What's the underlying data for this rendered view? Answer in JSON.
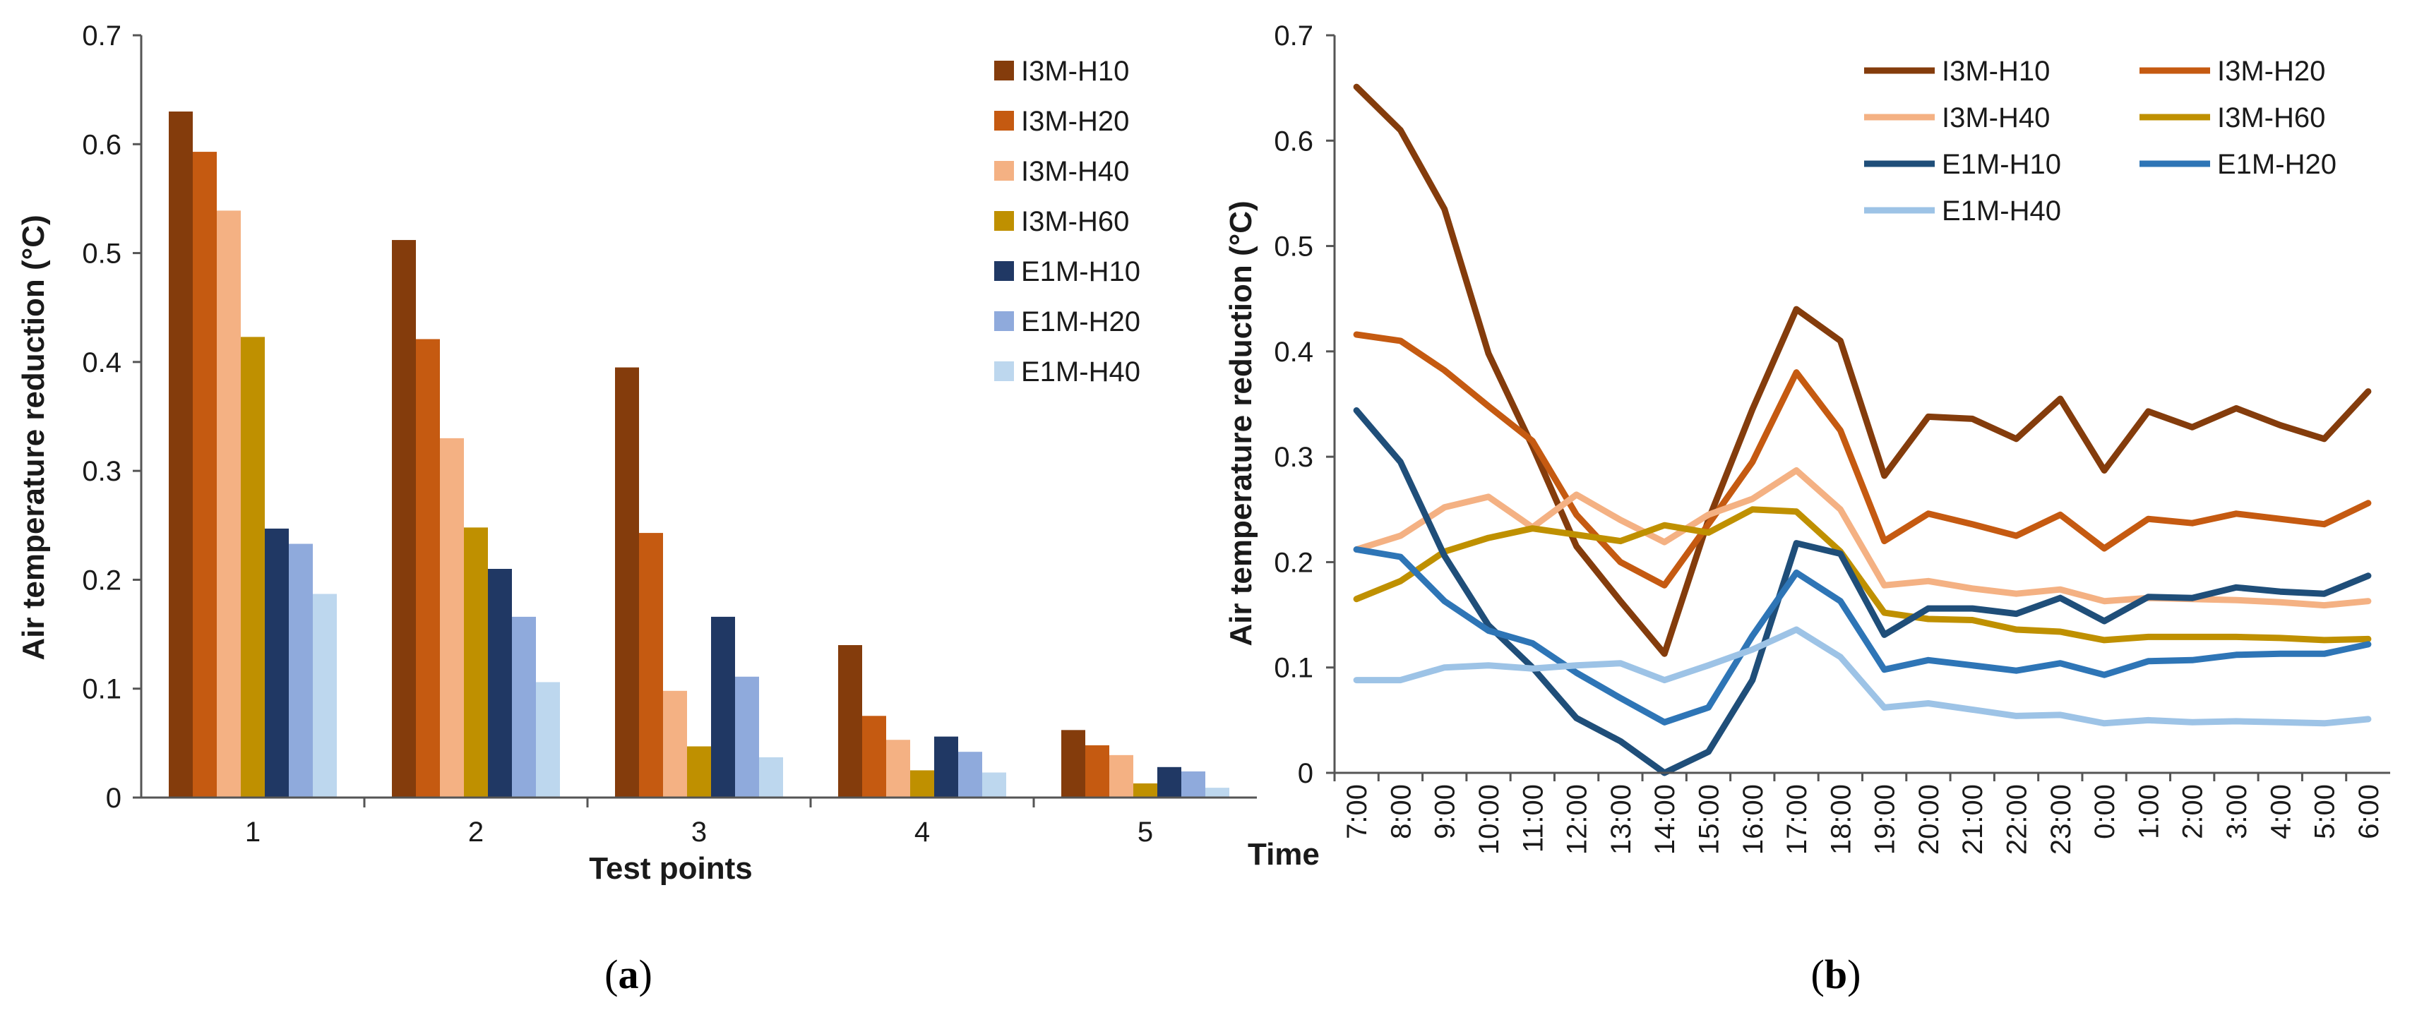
{
  "chart_data": [
    {
      "type": "bar",
      "caption": "a",
      "title": "",
      "xlabel": "Test  points",
      "ylabel": "Air temperature reduction (°C)",
      "ylim": [
        0,
        0.7
      ],
      "yticks": [
        "0",
        "0.1",
        "0.2",
        "0.3",
        "0.4",
        "0.5",
        "0.6",
        "0.7"
      ],
      "categories": [
        "1",
        "2",
        "3",
        "4",
        "5"
      ],
      "legend_position": "top-right",
      "grid": false,
      "series": [
        {
          "name": "I3M-H10",
          "color": "#843C0C",
          "values": [
            0.63,
            0.512,
            0.395,
            0.14,
            0.062
          ]
        },
        {
          "name": "I3M-H20",
          "color": "#C55A11",
          "values": [
            0.593,
            0.421,
            0.243,
            0.075,
            0.048
          ]
        },
        {
          "name": "I3M-H40",
          "color": "#F4B183",
          "values": [
            0.539,
            0.33,
            0.098,
            0.053,
            0.039
          ]
        },
        {
          "name": "I3M-H60",
          "color": "#BF9000",
          "values": [
            0.423,
            0.248,
            0.047,
            0.025,
            0.013
          ]
        },
        {
          "name": "E1M-H10",
          "color": "#203864",
          "values": [
            0.247,
            0.21,
            0.166,
            0.056,
            0.028
          ]
        },
        {
          "name": "E1M-H20",
          "color": "#8FAADC",
          "values": [
            0.233,
            0.166,
            0.111,
            0.042,
            0.024
          ]
        },
        {
          "name": "E1M-H40",
          "color": "#BDD7EE",
          "values": [
            0.187,
            0.106,
            0.037,
            0.023,
            0.009
          ]
        }
      ]
    },
    {
      "type": "line",
      "caption": "b",
      "title": "",
      "xlabel": "Time",
      "ylabel": "Air temperature reduction (°C)",
      "ylim": [
        0,
        0.7
      ],
      "yticks": [
        "0",
        "0.1",
        "0.2",
        "0.3",
        "0.4",
        "0.5",
        "0.6",
        "0.7"
      ],
      "x": [
        "7:00",
        "8:00",
        "9:00",
        "10:00",
        "11:00",
        "12:00",
        "13:00",
        "14:00",
        "15:00",
        "16:00",
        "17:00",
        "18:00",
        "19:00",
        "20:00",
        "21:00",
        "22:00",
        "23:00",
        "0:00",
        "1:00",
        "2:00",
        "3:00",
        "4:00",
        "5:00",
        "6:00"
      ],
      "legend_position": "top",
      "grid": false,
      "series": [
        {
          "name": "I3M-H10",
          "color": "#843C0C",
          "values": [
            0.651,
            0.61,
            0.535,
            0.398,
            0.31,
            0.215,
            0.163,
            0.113,
            0.24,
            0.345,
            0.44,
            0.41,
            0.282,
            0.338,
            0.336,
            0.317,
            0.355,
            0.287,
            0.343,
            0.328,
            0.346,
            0.33,
            0.317,
            0.362
          ]
        },
        {
          "name": "I3M-H20",
          "color": "#C55A11",
          "values": [
            0.416,
            0.41,
            0.382,
            0.348,
            0.315,
            0.245,
            0.2,
            0.178,
            0.236,
            0.295,
            0.38,
            0.325,
            0.22,
            0.246,
            0.236,
            0.225,
            0.245,
            0.213,
            0.241,
            0.237,
            0.246,
            0.241,
            0.236,
            0.256
          ]
        },
        {
          "name": "I3M-H40",
          "color": "#F4B183",
          "values": [
            0.212,
            0.225,
            0.252,
            0.262,
            0.233,
            0.264,
            0.24,
            0.219,
            0.245,
            0.26,
            0.287,
            0.25,
            0.178,
            0.182,
            0.175,
            0.17,
            0.174,
            0.163,
            0.166,
            0.165,
            0.164,
            0.162,
            0.159,
            0.163
          ]
        },
        {
          "name": "I3M-H60",
          "color": "#BF9000",
          "values": [
            0.165,
            0.182,
            0.21,
            0.223,
            0.232,
            0.226,
            0.22,
            0.235,
            0.228,
            0.25,
            0.248,
            0.21,
            0.152,
            0.146,
            0.145,
            0.136,
            0.134,
            0.126,
            0.129,
            0.129,
            0.129,
            0.128,
            0.126,
            0.127
          ]
        },
        {
          "name": "E1M-H10",
          "color": "#1F4E79",
          "values": [
            0.344,
            0.295,
            0.206,
            0.14,
            0.1,
            0.052,
            0.03,
            0.0,
            0.02,
            0.088,
            0.218,
            0.208,
            0.131,
            0.156,
            0.156,
            0.151,
            0.166,
            0.144,
            0.167,
            0.166,
            0.176,
            0.172,
            0.17,
            0.187
          ]
        },
        {
          "name": "E1M-H20",
          "color": "#2E75B6",
          "values": [
            0.212,
            0.205,
            0.163,
            0.135,
            0.123,
            0.095,
            0.071,
            0.048,
            0.062,
            0.13,
            0.19,
            0.163,
            0.098,
            0.107,
            0.102,
            0.097,
            0.104,
            0.093,
            0.106,
            0.107,
            0.112,
            0.113,
            0.113,
            0.122
          ]
        },
        {
          "name": "E1M-H40",
          "color": "#9DC3E6",
          "values": [
            0.088,
            0.088,
            0.1,
            0.102,
            0.099,
            0.102,
            0.104,
            0.088,
            0.102,
            0.117,
            0.136,
            0.11,
            0.062,
            0.066,
            0.06,
            0.054,
            0.055,
            0.047,
            0.05,
            0.048,
            0.049,
            0.048,
            0.047,
            0.051
          ]
        }
      ]
    }
  ]
}
